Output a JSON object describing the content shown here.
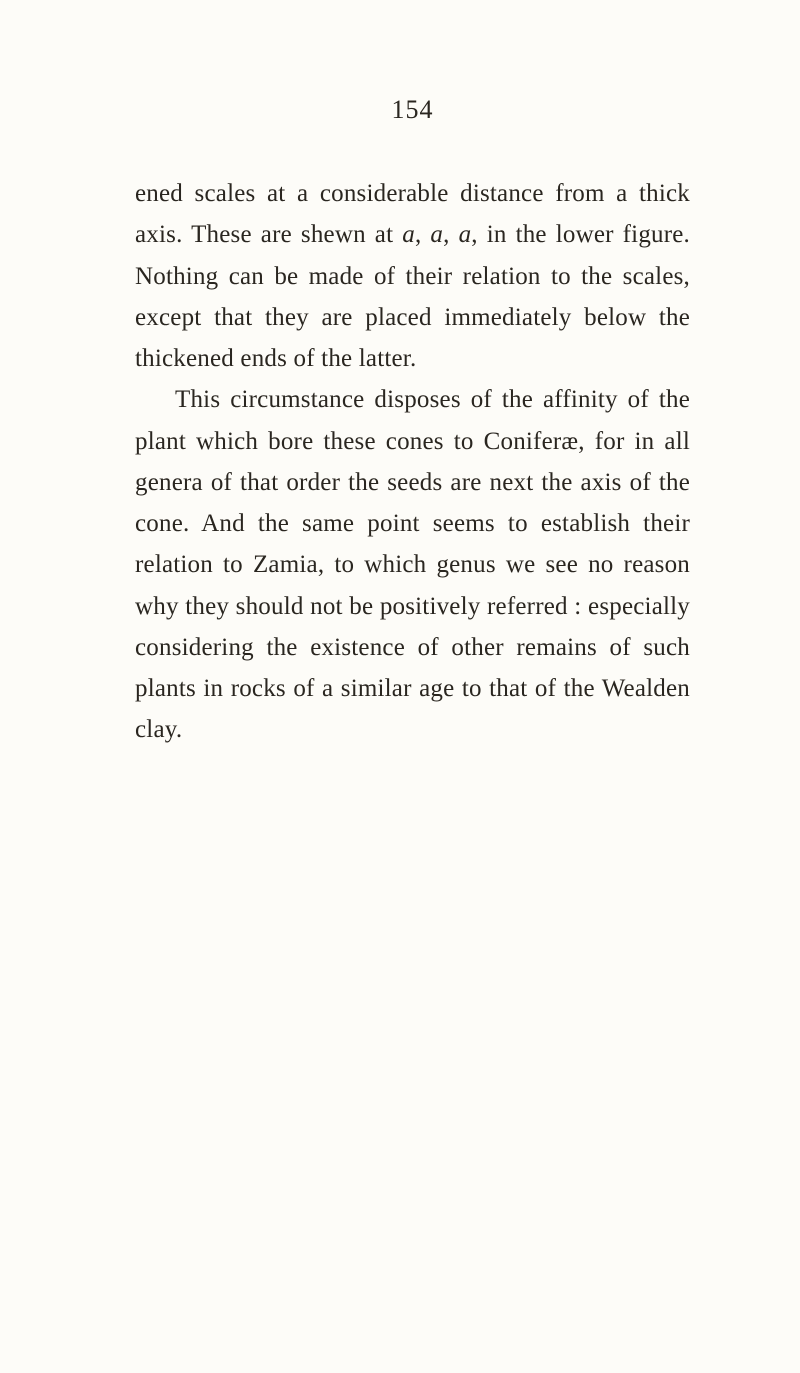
{
  "page": {
    "number": "154",
    "paragraphs": [
      [
        {
          "t": "ened scales at a considerable distance from a thick axis. These are shewn at ",
          "i": false
        },
        {
          "t": "a",
          "i": true
        },
        {
          "t": ", ",
          "i": false
        },
        {
          "t": "a",
          "i": true
        },
        {
          "t": ", ",
          "i": false
        },
        {
          "t": "a",
          "i": true
        },
        {
          "t": ", in the lower figure. Nothing can be made of their relation to the scales, except that they are placed immediately below the thickened ends of the latter.",
          "i": false
        }
      ],
      [
        {
          "t": "This circumstance disposes of the affinity of the plant which bore these cones to Coniferæ, for in all genera of that order the seeds are next the axis of the cone. And the same point seems to establish their relation to Zamia, to which genus we see no reason why they should not be positively referred : especially considering the existence of other remains of such plants in rocks of a similar age to that of the Wealden clay.",
          "i": false
        }
      ]
    ]
  },
  "style": {
    "background_color": "#fdfcf8",
    "text_color": "#2a2620",
    "page_number_fontsize": 26,
    "body_fontsize": 25,
    "line_height": 1.65,
    "font_family": "Georgia, 'Times New Roman', serif"
  }
}
